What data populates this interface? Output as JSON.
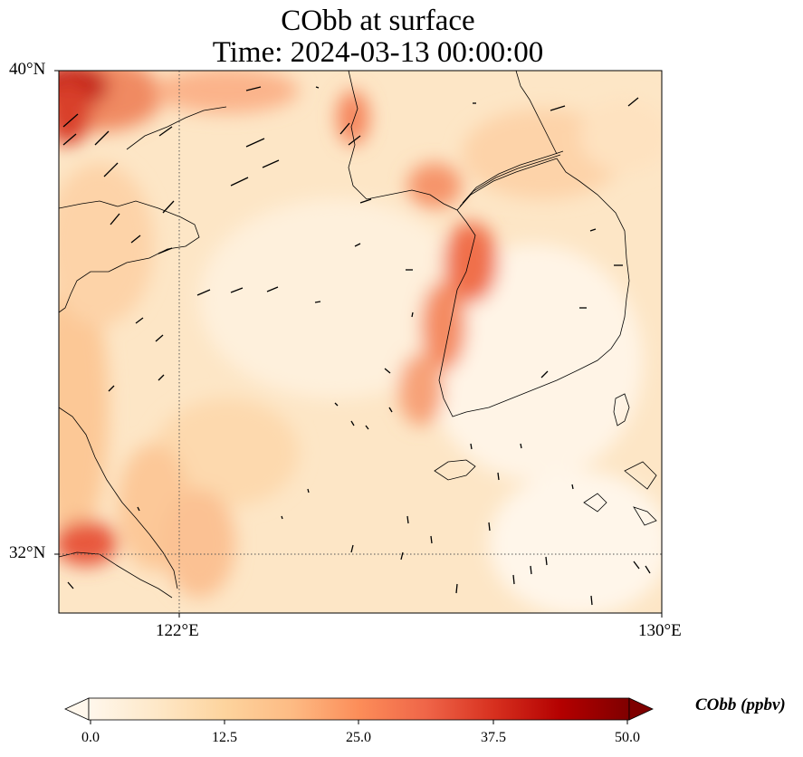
{
  "title": {
    "line1": "CObb at surface",
    "line2": "Time: 2024-03-13 00:00:00"
  },
  "axes": {
    "y_ticks": [
      "40°N",
      "32°N"
    ],
    "x_ticks": [
      "122°E",
      "130°E"
    ]
  },
  "colorbar": {
    "label": "CObb (ppbv)",
    "ticks": [
      "0.0",
      "12.5",
      "25.0",
      "37.5",
      "50.0"
    ],
    "colormap": "OrRd",
    "extend": "both",
    "colors": [
      "#fff7ec",
      "#fee8c8",
      "#fdd49e",
      "#fdbb84",
      "#fc8d59",
      "#ef6548",
      "#d7301f",
      "#b30000",
      "#7f0000"
    ]
  },
  "map": {
    "lon_range": [
      120,
      130
    ],
    "lat_range": [
      31,
      40
    ],
    "gridlines": "dotted",
    "vectors": "wind"
  }
}
